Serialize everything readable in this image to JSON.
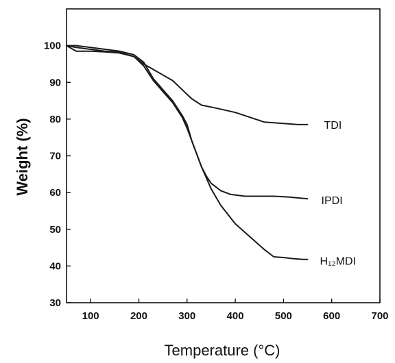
{
  "chart_data": {
    "type": "line",
    "xlabel": "Temperature (°C)",
    "ylabel": "Weight (%)",
    "xlim": [
      50,
      700
    ],
    "ylim": [
      30,
      110
    ],
    "xticks": [
      100,
      200,
      300,
      400,
      500,
      600,
      700
    ],
    "yticks": [
      30,
      40,
      50,
      60,
      70,
      80,
      90,
      100
    ],
    "grid": false,
    "series": [
      {
        "name": "TDI",
        "x": [
          50,
          70,
          100,
          130,
          160,
          190,
          210,
          230,
          250,
          270,
          290,
          310,
          330,
          360,
          400,
          430,
          460,
          500,
          530,
          550
        ],
        "y": [
          100,
          99.5,
          99,
          98.5,
          98.2,
          97,
          95,
          93.5,
          92,
          90.5,
          88,
          85.5,
          83.8,
          83,
          81.8,
          80.5,
          79.2,
          78.8,
          78.5,
          78.5
        ]
      },
      {
        "name": "IPDI",
        "x": [
          50,
          70,
          100,
          130,
          160,
          190,
          210,
          230,
          250,
          270,
          290,
          300,
          310,
          320,
          330,
          340,
          350,
          370,
          390,
          420,
          450,
          480,
          510,
          550
        ],
        "y": [
          100,
          98.5,
          98.5,
          98.3,
          98,
          97,
          94.5,
          90.5,
          87.5,
          84.5,
          80.5,
          77.5,
          74,
          70.5,
          67,
          64.5,
          62.5,
          60.5,
          59.5,
          59,
          59,
          59,
          58.8,
          58.3
        ]
      },
      {
        "name": "H₁₂MDI",
        "x": [
          50,
          70,
          100,
          130,
          160,
          190,
          210,
          230,
          250,
          270,
          290,
          300,
          310,
          330,
          350,
          370,
          400,
          430,
          460,
          480,
          500,
          520,
          540,
          550
        ],
        "y": [
          100,
          100,
          99.5,
          99,
          98.5,
          97.5,
          95.5,
          91,
          88,
          85,
          81,
          78.5,
          74,
          67,
          61,
          56.5,
          51.5,
          48,
          44.5,
          42.5,
          42.3,
          42,
          41.8,
          41.8
        ]
      }
    ]
  }
}
